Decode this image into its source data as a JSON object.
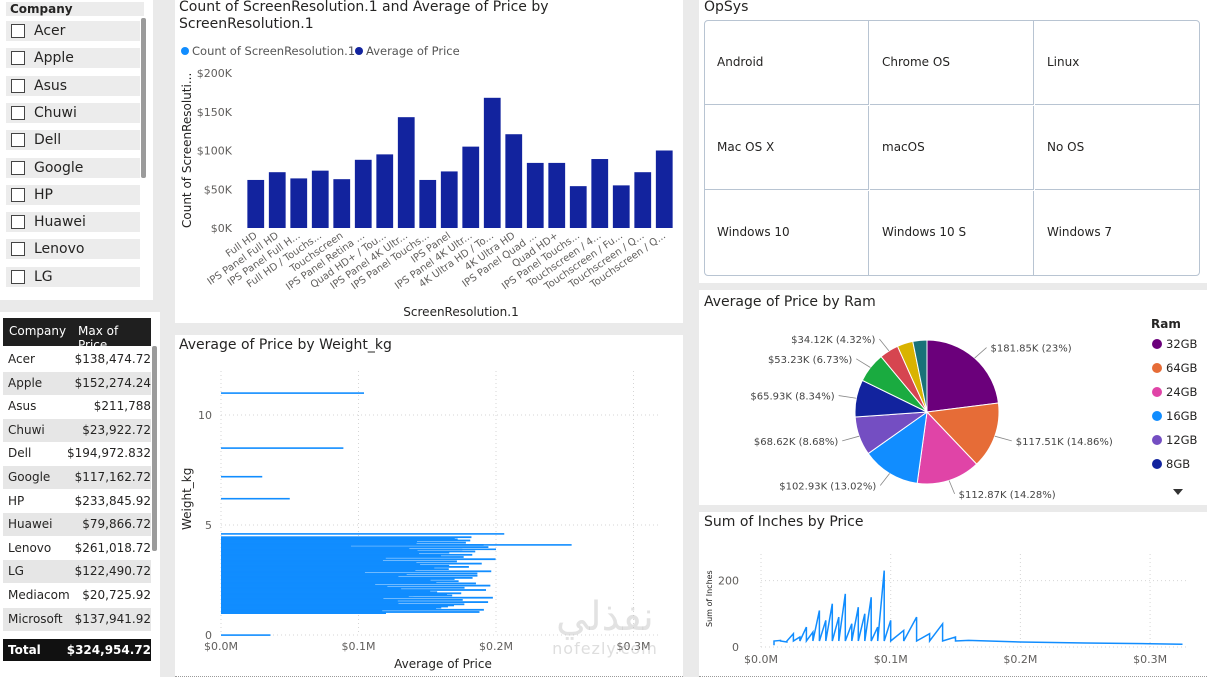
{
  "slicer": {
    "header": "Company",
    "items": [
      "Acer",
      "Apple",
      "Asus",
      "Chuwi",
      "Dell",
      "Google",
      "HP",
      "Huawei",
      "Lenovo",
      "LG"
    ]
  },
  "table": {
    "col1": "Company",
    "col2": "Max of Price",
    "rows": [
      [
        "Acer",
        "$138,474.72"
      ],
      [
        "Apple",
        "$152,274.24"
      ],
      [
        "Asus",
        "$211,788"
      ],
      [
        "Chuwi",
        "$23,922.72"
      ],
      [
        "Dell",
        "$194,972.832"
      ],
      [
        "Google",
        "$117,162.72"
      ],
      [
        "HP",
        "$233,845.92"
      ],
      [
        "Huawei",
        "$79,866.72"
      ],
      [
        "Lenovo",
        "$261,018.72"
      ],
      [
        "LG",
        "$122,490.72"
      ],
      [
        "Mediacom",
        "$20,725.92"
      ],
      [
        "Microsoft",
        "$137,941.92"
      ]
    ],
    "total_label": "Total",
    "total_value": "$324,954.72"
  },
  "opsys": {
    "title": "OpSys",
    "items": [
      "Android",
      "Chrome OS",
      "Linux",
      "Mac OS X",
      "macOS",
      "No OS",
      "Windows 10",
      "Windows 10 S",
      "Windows 7"
    ]
  },
  "watermark": {
    "arabic": "نفذلي",
    "latin": "nofezly.com"
  },
  "charts": {
    "bar": {
      "title_line1": "Count of ScreenResolution.1 and Average of Price by",
      "title_line2": "ScreenResolution.1",
      "legend": [
        "Count of ScreenResolution.1",
        "Average of Price"
      ],
      "xlabel": "ScreenResolution.1",
      "ylabel": "Count of ScreenResoluti...",
      "yticks": [
        "$0K",
        "$50K",
        "$100K",
        "$150K",
        "$200K"
      ],
      "colors": {
        "count": "#118DFF",
        "price": "#12239E"
      }
    },
    "weight": {
      "title": "Average of Price by Weight_kg",
      "xlabel": "Average of Price",
      "ylabel": "Weight_kg",
      "xticks": [
        "$0.0M",
        "$0.1M",
        "$0.2M",
        "$0.3M"
      ],
      "yticks": [
        "0",
        "5",
        "10"
      ]
    },
    "pie": {
      "title": "Average of Price by Ram",
      "legend_title": "Ram"
    },
    "inches": {
      "title": "Sum of Inches by Price",
      "ylabel": "Sum of Inches",
      "xticks": [
        "$0.0M",
        "$0.1M",
        "$0.2M",
        "$0.3M"
      ],
      "yticks": [
        "0",
        "200"
      ]
    }
  },
  "chart_data": [
    {
      "type": "bar",
      "categories": [
        "Full HD",
        "IPS Panel Full HD",
        "IPS Panel Full H...",
        "Full HD / Touchs...",
        "Touchscreen",
        "IPS Panel Retina ...",
        "Quad HD+ / Tou...",
        "IPS Panel 4K Ultr...",
        "IPS Panel Touchs...",
        "IPS Panel",
        "IPS Panel 4K Ultr...",
        "4K Ultra HD / To...",
        "4K Ultra HD",
        "IPS Panel Quad ...",
        "Quad HD+",
        "IPS Panel Touchs...",
        "Touchscreen / 4...",
        "Touchscreen / Fu...",
        "Touchscreen / Q...",
        "Touchscreen / Q..."
      ],
      "series": [
        {
          "name": "Average of Price",
          "values": [
            62000,
            72000,
            64000,
            74000,
            63000,
            88000,
            95000,
            143000,
            62000,
            73000,
            105000,
            168000,
            121000,
            84000,
            84000,
            54000,
            89000,
            55000,
            72000,
            100000
          ]
        }
      ],
      "ylim": [
        0,
        200000
      ]
    },
    {
      "type": "bar",
      "orientation": "horizontal",
      "x": [
        104000,
        89000,
        30000,
        50000,
        206000,
        170000,
        255000,
        200000,
        160000,
        140000,
        120000,
        110000,
        99000,
        80000,
        140000,
        98000,
        60000,
        36000
      ],
      "y": [
        11,
        8.5,
        7.2,
        6.2,
        4.6,
        4.4,
        4.1,
        3.9,
        3.6,
        3.3,
        3.0,
        2.7,
        2.4,
        2.1,
        1.8,
        1.5,
        1.2,
        0.0
      ],
      "xlim": [
        0,
        320000
      ],
      "ylim": [
        0,
        12
      ]
    },
    {
      "type": "pie",
      "categories": [
        "32GB",
        "64GB",
        "24GB",
        "16GB",
        "12GB",
        "8GB",
        "",
        "",
        "",
        ""
      ],
      "values": [
        181.85,
        117.51,
        112.87,
        102.93,
        68.62,
        65.93,
        53.23,
        34.12,
        28.0,
        25.0
      ],
      "labels": [
        "$181.85K (23%)",
        "$117.51K (14.86%)",
        "$112.87K (14.28%)",
        "$102.93K (13.02%)",
        "$68.62K (8.68%)",
        "$65.93K (8.34%)",
        "$53.23K (6.73%)",
        "$34.12K (4.32%)",
        "",
        ""
      ],
      "colors": [
        "#6B007B",
        "#E66C37",
        "#E044A7",
        "#118DFF",
        "#744EC2",
        "#12239E",
        "#1AAB40",
        "#D64550",
        "#D9B300",
        "#197278"
      ]
    },
    {
      "type": "line",
      "x": [
        10000,
        15000,
        20000,
        25000,
        30000,
        35000,
        40000,
        45000,
        50000,
        55000,
        60000,
        65000,
        70000,
        75000,
        80000,
        85000,
        90000,
        95000,
        100000,
        110000,
        120000,
        130000,
        140000,
        150000,
        160000,
        200000,
        250000,
        300000,
        325000
      ],
      "y": [
        5,
        20,
        15,
        40,
        30,
        60,
        45,
        110,
        80,
        130,
        90,
        160,
        70,
        120,
        100,
        150,
        60,
        230,
        80,
        50,
        90,
        40,
        70,
        30,
        20,
        15,
        12,
        10,
        8
      ],
      "xlim": [
        0,
        330000
      ],
      "ylim": [
        0,
        250
      ]
    }
  ]
}
